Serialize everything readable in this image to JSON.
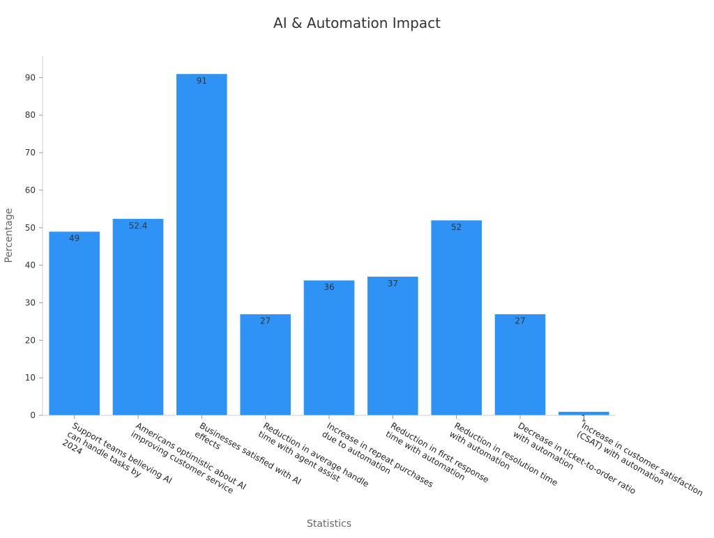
{
  "chart_data": {
    "type": "bar",
    "title": "AI & Automation Impact",
    "xlabel": "Statistics",
    "ylabel": "Percentage",
    "ylim": [
      0,
      95
    ],
    "yticks": [
      0,
      10,
      20,
      30,
      40,
      50,
      60,
      70,
      80,
      90
    ],
    "grid": false,
    "legend": "none",
    "bar_color": "#2e93f5",
    "categories": [
      [
        "Support teams believing AI",
        "can handle tasks by",
        "2024"
      ],
      [
        "Americans optimistic about AI",
        "improving customer service"
      ],
      [
        "Businesses satisfied with AI",
        "effects"
      ],
      [
        "Reduction in average handle",
        "time with agent assist"
      ],
      [
        "Increase in repeat purchases",
        "due to automation"
      ],
      [
        "Reduction in first response",
        "time with automation"
      ],
      [
        "Reduction in resolution time",
        "with automation"
      ],
      [
        "Decrease in ticket-to-order ratio",
        "with automation"
      ],
      [
        "Increase in customer satisfaction",
        "(CSAT) with automation"
      ]
    ],
    "values": [
      49,
      52.4,
      91,
      27,
      36,
      37,
      52,
      27,
      1
    ],
    "labels": [
      "49",
      "52.4",
      "91",
      "27",
      "36",
      "37",
      "52",
      "27",
      "1"
    ]
  }
}
